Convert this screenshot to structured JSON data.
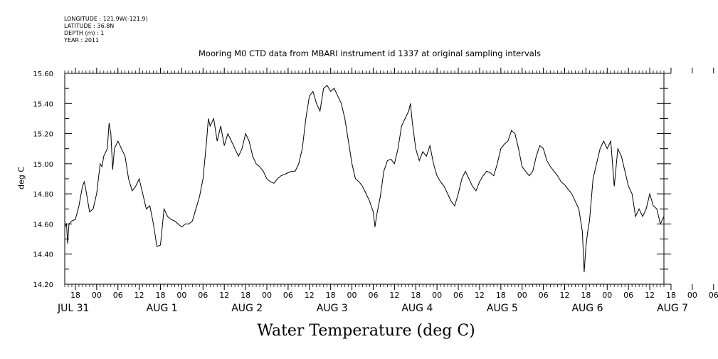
{
  "meta_lines": [
    "LONGITUDE : 121.9W(-121.9)",
    "LATITUDE : 36.8N",
    "DEPTH (m) : 1",
    "YEAR : 2011"
  ],
  "chart_data": {
    "type": "line",
    "title": "Mooring M0 CTD data from MBARI instrument id 1337 at original sampling intervals",
    "xlabel": "Water Temperature (deg C)",
    "ylabel": "deg C",
    "ylim": [
      14.2,
      15.6
    ],
    "yticks": [
      "14.20",
      "14.40",
      "14.60",
      "14.80",
      "15.00",
      "15.20",
      "15.40",
      "15.60"
    ],
    "xlim_hours": [
      0,
      169
    ],
    "x_hour_ticks": [
      "18",
      "00",
      "06",
      "12",
      "18",
      "00",
      "06",
      "12",
      "18",
      "00",
      "06",
      "12",
      "18",
      "00",
      "06",
      "12",
      "18",
      "00",
      "06",
      "12",
      "18",
      "00",
      "06",
      "12",
      "18",
      "00",
      "06",
      "12",
      "18",
      "00",
      "06",
      "12"
    ],
    "x_day_labels": [
      "JUL 31",
      "AUG  1",
      "AUG  2",
      "AUG  3",
      "AUG  4",
      "AUG  5",
      "AUG  6",
      "AUG  7"
    ],
    "grid": false,
    "series": [
      {
        "values": [
          [
            0,
            14.58
          ],
          [
            0.5,
            14.6
          ],
          [
            0.8,
            14.47
          ],
          [
            1.2,
            14.6
          ],
          [
            2,
            14.62
          ],
          [
            3,
            14.63
          ],
          [
            4,
            14.72
          ],
          [
            5,
            14.85
          ],
          [
            5.5,
            14.88
          ],
          [
            6,
            14.82
          ],
          [
            7,
            14.68
          ],
          [
            8,
            14.7
          ],
          [
            9,
            14.8
          ],
          [
            9.5,
            14.9
          ],
          [
            10,
            15.0
          ],
          [
            10.5,
            14.98
          ],
          [
            11,
            15.05
          ],
          [
            12,
            15.1
          ],
          [
            12.5,
            15.27
          ],
          [
            13,
            15.2
          ],
          [
            13.5,
            14.96
          ],
          [
            14,
            15.1
          ],
          [
            15,
            15.15
          ],
          [
            16,
            15.1
          ],
          [
            17,
            15.05
          ],
          [
            18,
            14.9
          ],
          [
            19,
            14.82
          ],
          [
            20,
            14.85
          ],
          [
            21,
            14.9
          ],
          [
            22,
            14.8
          ],
          [
            23,
            14.7
          ],
          [
            24,
            14.72
          ],
          [
            25,
            14.6
          ],
          [
            26,
            14.45
          ],
          [
            27,
            14.46
          ],
          [
            28,
            14.7
          ],
          [
            29,
            14.65
          ],
          [
            30,
            14.63
          ],
          [
            31,
            14.62
          ],
          [
            32,
            14.6
          ],
          [
            33,
            14.58
          ],
          [
            34,
            14.6
          ],
          [
            35,
            14.6
          ],
          [
            36,
            14.62
          ],
          [
            37,
            14.7
          ],
          [
            38,
            14.78
          ],
          [
            39,
            14.9
          ],
          [
            40,
            15.15
          ],
          [
            40.5,
            15.3
          ],
          [
            41,
            15.25
          ],
          [
            42,
            15.3
          ],
          [
            43,
            15.15
          ],
          [
            44,
            15.25
          ],
          [
            45,
            15.12
          ],
          [
            46,
            15.2
          ],
          [
            47,
            15.15
          ],
          [
            48,
            15.1
          ],
          [
            49,
            15.05
          ],
          [
            50,
            15.1
          ],
          [
            51,
            15.2
          ],
          [
            52,
            15.15
          ],
          [
            53,
            15.05
          ],
          [
            54,
            15.0
          ],
          [
            55,
            14.98
          ],
          [
            56,
            14.95
          ],
          [
            57,
            14.9
          ],
          [
            58,
            14.88
          ],
          [
            59,
            14.87
          ],
          [
            60,
            14.9
          ],
          [
            61,
            14.92
          ],
          [
            62,
            14.93
          ],
          [
            63,
            14.94
          ],
          [
            64,
            14.95
          ],
          [
            65,
            14.95
          ],
          [
            66,
            15.0
          ],
          [
            67,
            15.1
          ],
          [
            68,
            15.3
          ],
          [
            69,
            15.45
          ],
          [
            70,
            15.48
          ],
          [
            71,
            15.4
          ],
          [
            72,
            15.35
          ],
          [
            73,
            15.5
          ],
          [
            74,
            15.52
          ],
          [
            75,
            15.48
          ],
          [
            76,
            15.5
          ],
          [
            77,
            15.45
          ],
          [
            78,
            15.4
          ],
          [
            79,
            15.3
          ],
          [
            80,
            15.15
          ],
          [
            81,
            15.0
          ],
          [
            82,
            14.9
          ],
          [
            83,
            14.88
          ],
          [
            84,
            14.85
          ],
          [
            85,
            14.8
          ],
          [
            86,
            14.75
          ],
          [
            87,
            14.68
          ],
          [
            87.5,
            14.58
          ],
          [
            88,
            14.66
          ],
          [
            89,
            14.78
          ],
          [
            90,
            14.95
          ],
          [
            91,
            15.02
          ],
          [
            92,
            15.03
          ],
          [
            93,
            15.0
          ],
          [
            94,
            15.1
          ],
          [
            95,
            15.25
          ],
          [
            96,
            15.3
          ],
          [
            97,
            15.35
          ],
          [
            97.5,
            15.4
          ],
          [
            98,
            15.28
          ],
          [
            99,
            15.1
          ],
          [
            100,
            15.02
          ],
          [
            101,
            15.08
          ],
          [
            102,
            15.05
          ],
          [
            103,
            15.12
          ],
          [
            104,
            15.0
          ],
          [
            105,
            14.92
          ],
          [
            106,
            14.88
          ],
          [
            107,
            14.85
          ],
          [
            108,
            14.8
          ],
          [
            109,
            14.75
          ],
          [
            110,
            14.72
          ],
          [
            111,
            14.8
          ],
          [
            112,
            14.9
          ],
          [
            113,
            14.95
          ],
          [
            114,
            14.9
          ],
          [
            115,
            14.85
          ],
          [
            116,
            14.82
          ],
          [
            117,
            14.88
          ],
          [
            118,
            14.92
          ],
          [
            119,
            14.95
          ],
          [
            120,
            14.94
          ],
          [
            121,
            14.92
          ],
          [
            122,
            15.0
          ],
          [
            123,
            15.1
          ],
          [
            124,
            15.13
          ],
          [
            125,
            15.15
          ],
          [
            126,
            15.22
          ],
          [
            127,
            15.2
          ],
          [
            128,
            15.1
          ],
          [
            129,
            14.98
          ],
          [
            130,
            14.95
          ],
          [
            131,
            14.92
          ],
          [
            132,
            14.95
          ],
          [
            133,
            15.05
          ],
          [
            134,
            15.12
          ],
          [
            135,
            15.1
          ],
          [
            136,
            15.02
          ],
          [
            137,
            14.98
          ],
          [
            138,
            14.95
          ],
          [
            139,
            14.92
          ],
          [
            140,
            14.88
          ],
          [
            141,
            14.86
          ],
          [
            142,
            14.83
          ],
          [
            143,
            14.8
          ],
          [
            144,
            14.75
          ],
          [
            145,
            14.7
          ],
          [
            146,
            14.55
          ],
          [
            146.5,
            14.28
          ],
          [
            147,
            14.45
          ],
          [
            147.5,
            14.55
          ],
          [
            148,
            14.62
          ],
          [
            149,
            14.9
          ],
          [
            150,
            15.0
          ],
          [
            151,
            15.1
          ],
          [
            152,
            15.15
          ],
          [
            153,
            15.1
          ],
          [
            154,
            15.15
          ],
          [
            155,
            14.85
          ],
          [
            156,
            15.1
          ],
          [
            157,
            15.05
          ],
          [
            158,
            14.95
          ],
          [
            159,
            14.85
          ],
          [
            160,
            14.8
          ],
          [
            161,
            14.65
          ],
          [
            162,
            14.7
          ],
          [
            163,
            14.65
          ],
          [
            164,
            14.7
          ],
          [
            165,
            14.8
          ],
          [
            166,
            14.72
          ],
          [
            167,
            14.7
          ],
          [
            168,
            14.6
          ],
          [
            169,
            14.65
          ]
        ]
      }
    ]
  }
}
